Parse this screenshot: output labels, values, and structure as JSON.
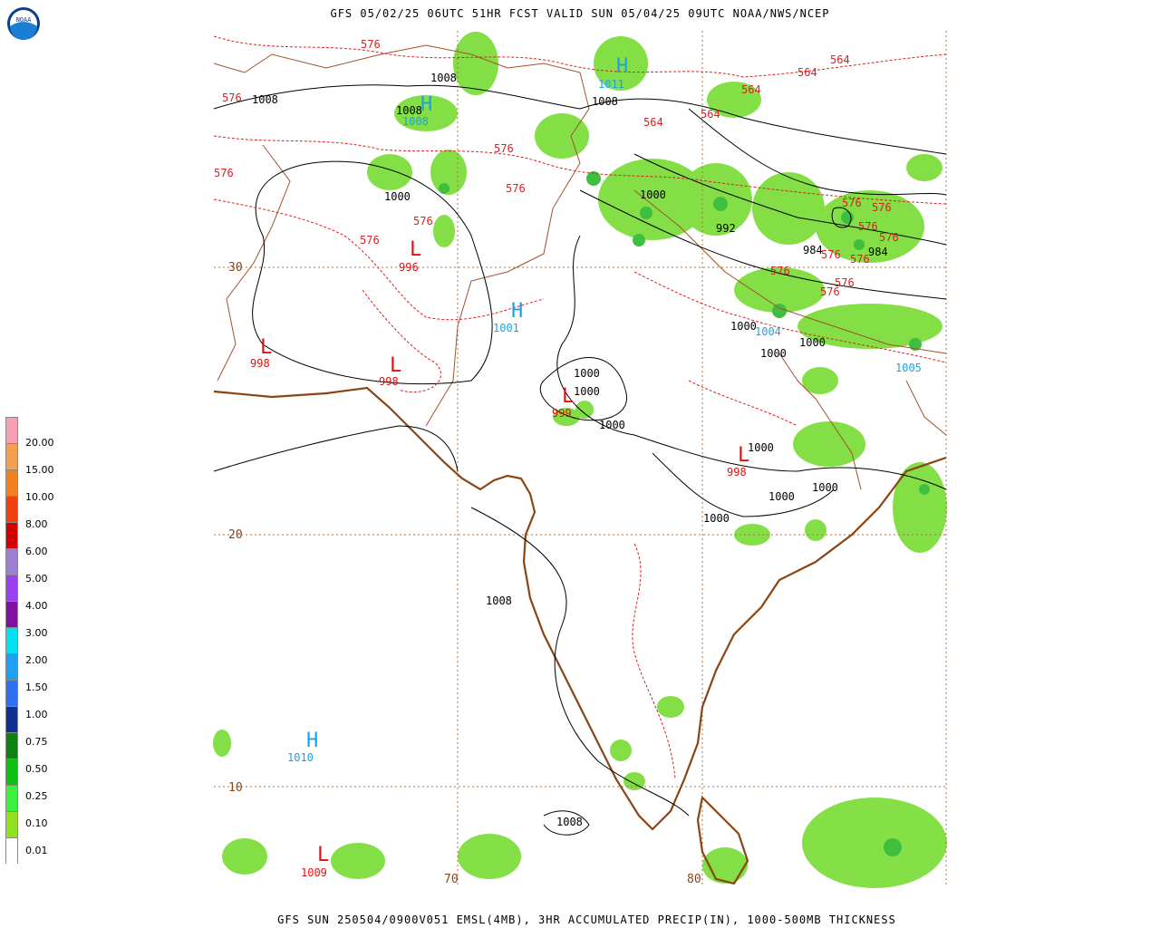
{
  "title": "GFS 05/02/25 06UTC 51HR FCST VALID SUN 05/04/25 09UTC NOAA/NWS/NCEP",
  "footer": "GFS SUN 250504/0900V051 EMSL(4MB), 3HR ACCUMULATED PRECIP(IN), 1000-500MB THICKNESS",
  "logo_text": "NOAA",
  "legend": {
    "labels": [
      "20.00",
      "15.00",
      "10.00",
      "8.00",
      "6.00",
      "5.00",
      "4.00",
      "3.00",
      "2.00",
      "1.50",
      "1.00",
      "0.75",
      "0.50",
      "0.25",
      "0.10",
      "0.01"
    ],
    "colors": [
      "#f7a0b5",
      "#f5a050",
      "#f08020",
      "#f04010",
      "#d00000",
      "#9b7fd0",
      "#9940f0",
      "#8010a0",
      "#00e0f0",
      "#20a0f0",
      "#3070f0",
      "#103090",
      "#108010",
      "#10c010",
      "#40f040",
      "#90e020",
      "#ffffff"
    ]
  },
  "gridlines": {
    "lat_labels": [
      "30",
      "20",
      "10"
    ],
    "lon_labels": [
      "70",
      "80"
    ]
  },
  "pressure_centers": [
    {
      "type": "H",
      "value": "1008",
      "color": "#19a3e6"
    },
    {
      "type": "H",
      "value": "1011",
      "color": "#19a3e6"
    },
    {
      "type": "H",
      "value": "1001",
      "color": "#19a3e6"
    },
    {
      "type": "H",
      "value": "1010",
      "color": "#19a3e6"
    },
    {
      "type": "L",
      "value": "998",
      "color": "#e01010"
    },
    {
      "type": "L",
      "value": "998",
      "color": "#e01010"
    },
    {
      "type": "L",
      "value": "996",
      "color": "#e01010"
    },
    {
      "type": "L",
      "value": "999",
      "color": "#e01010"
    },
    {
      "type": "L",
      "value": "998",
      "color": "#e01010"
    },
    {
      "type": "L",
      "value": "1009",
      "color": "#e01010"
    }
  ],
  "isobar_labels": [
    "1008",
    "1008",
    "1008",
    "1000",
    "1000",
    "1000",
    "1000",
    "1000",
    "1000",
    "1000",
    "1000",
    "1000",
    "1000",
    "1000",
    "992",
    "984",
    "984",
    "1008",
    "1008"
  ],
  "blue_labels": [
    "1004",
    "1005"
  ],
  "thickness_labels": [
    "576",
    "576",
    "576",
    "576",
    "576",
    "576",
    "576",
    "564",
    "564",
    "564",
    "564",
    "576",
    "576",
    "576",
    "576",
    "576",
    "576",
    "576",
    "576"
  ]
}
